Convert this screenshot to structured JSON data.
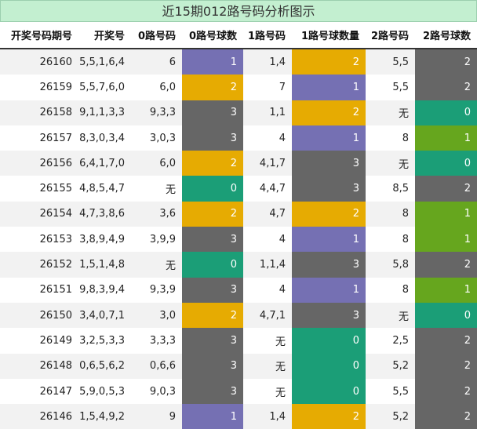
{
  "title": "近15期012路号码分析图示",
  "table": {
    "headers": [
      "开奖号码期号",
      "开奖号",
      "0路号码",
      "0路号球数",
      "1路号码",
      "1路号球数量",
      "2路号码",
      "2路号球数"
    ],
    "count_columns": [
      3,
      5,
      7
    ],
    "count_colors": [
      {
        "0": "#1b9e77",
        "1": "#7570b3",
        "2": "#e6ab02",
        "3": "#666666"
      },
      {
        "0": "#1b9e77",
        "1": "#7570b3",
        "2": "#e6ab02",
        "3": "#666666"
      },
      {
        "0": "#1b9e77",
        "1": "#66a61e",
        "2": "#666666",
        "3": "#666666"
      }
    ],
    "rows": [
      [
        26160,
        "5,5,1,6,4",
        "6",
        1,
        "1,4",
        2,
        "5,5",
        2
      ],
      [
        26159,
        "5,5,7,6,0",
        "6,0",
        2,
        "7",
        1,
        "5,5",
        2
      ],
      [
        26158,
        "9,1,1,3,3",
        "9,3,3",
        3,
        "1,1",
        2,
        "无",
        0
      ],
      [
        26157,
        "8,3,0,3,4",
        "3,0,3",
        3,
        "4",
        1,
        "8",
        1
      ],
      [
        26156,
        "6,4,1,7,0",
        "6,0",
        2,
        "4,1,7",
        3,
        "无",
        0
      ],
      [
        26155,
        "4,8,5,4,7",
        "无",
        0,
        "4,4,7",
        3,
        "8,5",
        2
      ],
      [
        26154,
        "4,7,3,8,6",
        "3,6",
        2,
        "4,7",
        2,
        "8",
        1
      ],
      [
        26153,
        "3,8,9,4,9",
        "3,9,9",
        3,
        "4",
        1,
        "8",
        1
      ],
      [
        26152,
        "1,5,1,4,8",
        "无",
        0,
        "1,1,4",
        3,
        "5,8",
        2
      ],
      [
        26151,
        "9,8,3,9,4",
        "9,3,9",
        3,
        "4",
        1,
        "8",
        1
      ],
      [
        26150,
        "3,4,0,7,1",
        "3,0",
        2,
        "4,7,1",
        3,
        "无",
        0
      ],
      [
        26149,
        "3,2,5,3,3",
        "3,3,3",
        3,
        "无",
        0,
        "2,5",
        2
      ],
      [
        26148,
        "0,6,5,6,2",
        "0,6,6",
        3,
        "无",
        0,
        "5,2",
        2
      ],
      [
        26147,
        "5,9,0,5,3",
        "9,0,3",
        3,
        "无",
        0,
        "5,5",
        2
      ],
      [
        26146,
        "1,5,4,9,2",
        "9",
        1,
        "1,4",
        2,
        "5,2",
        2
      ]
    ]
  }
}
